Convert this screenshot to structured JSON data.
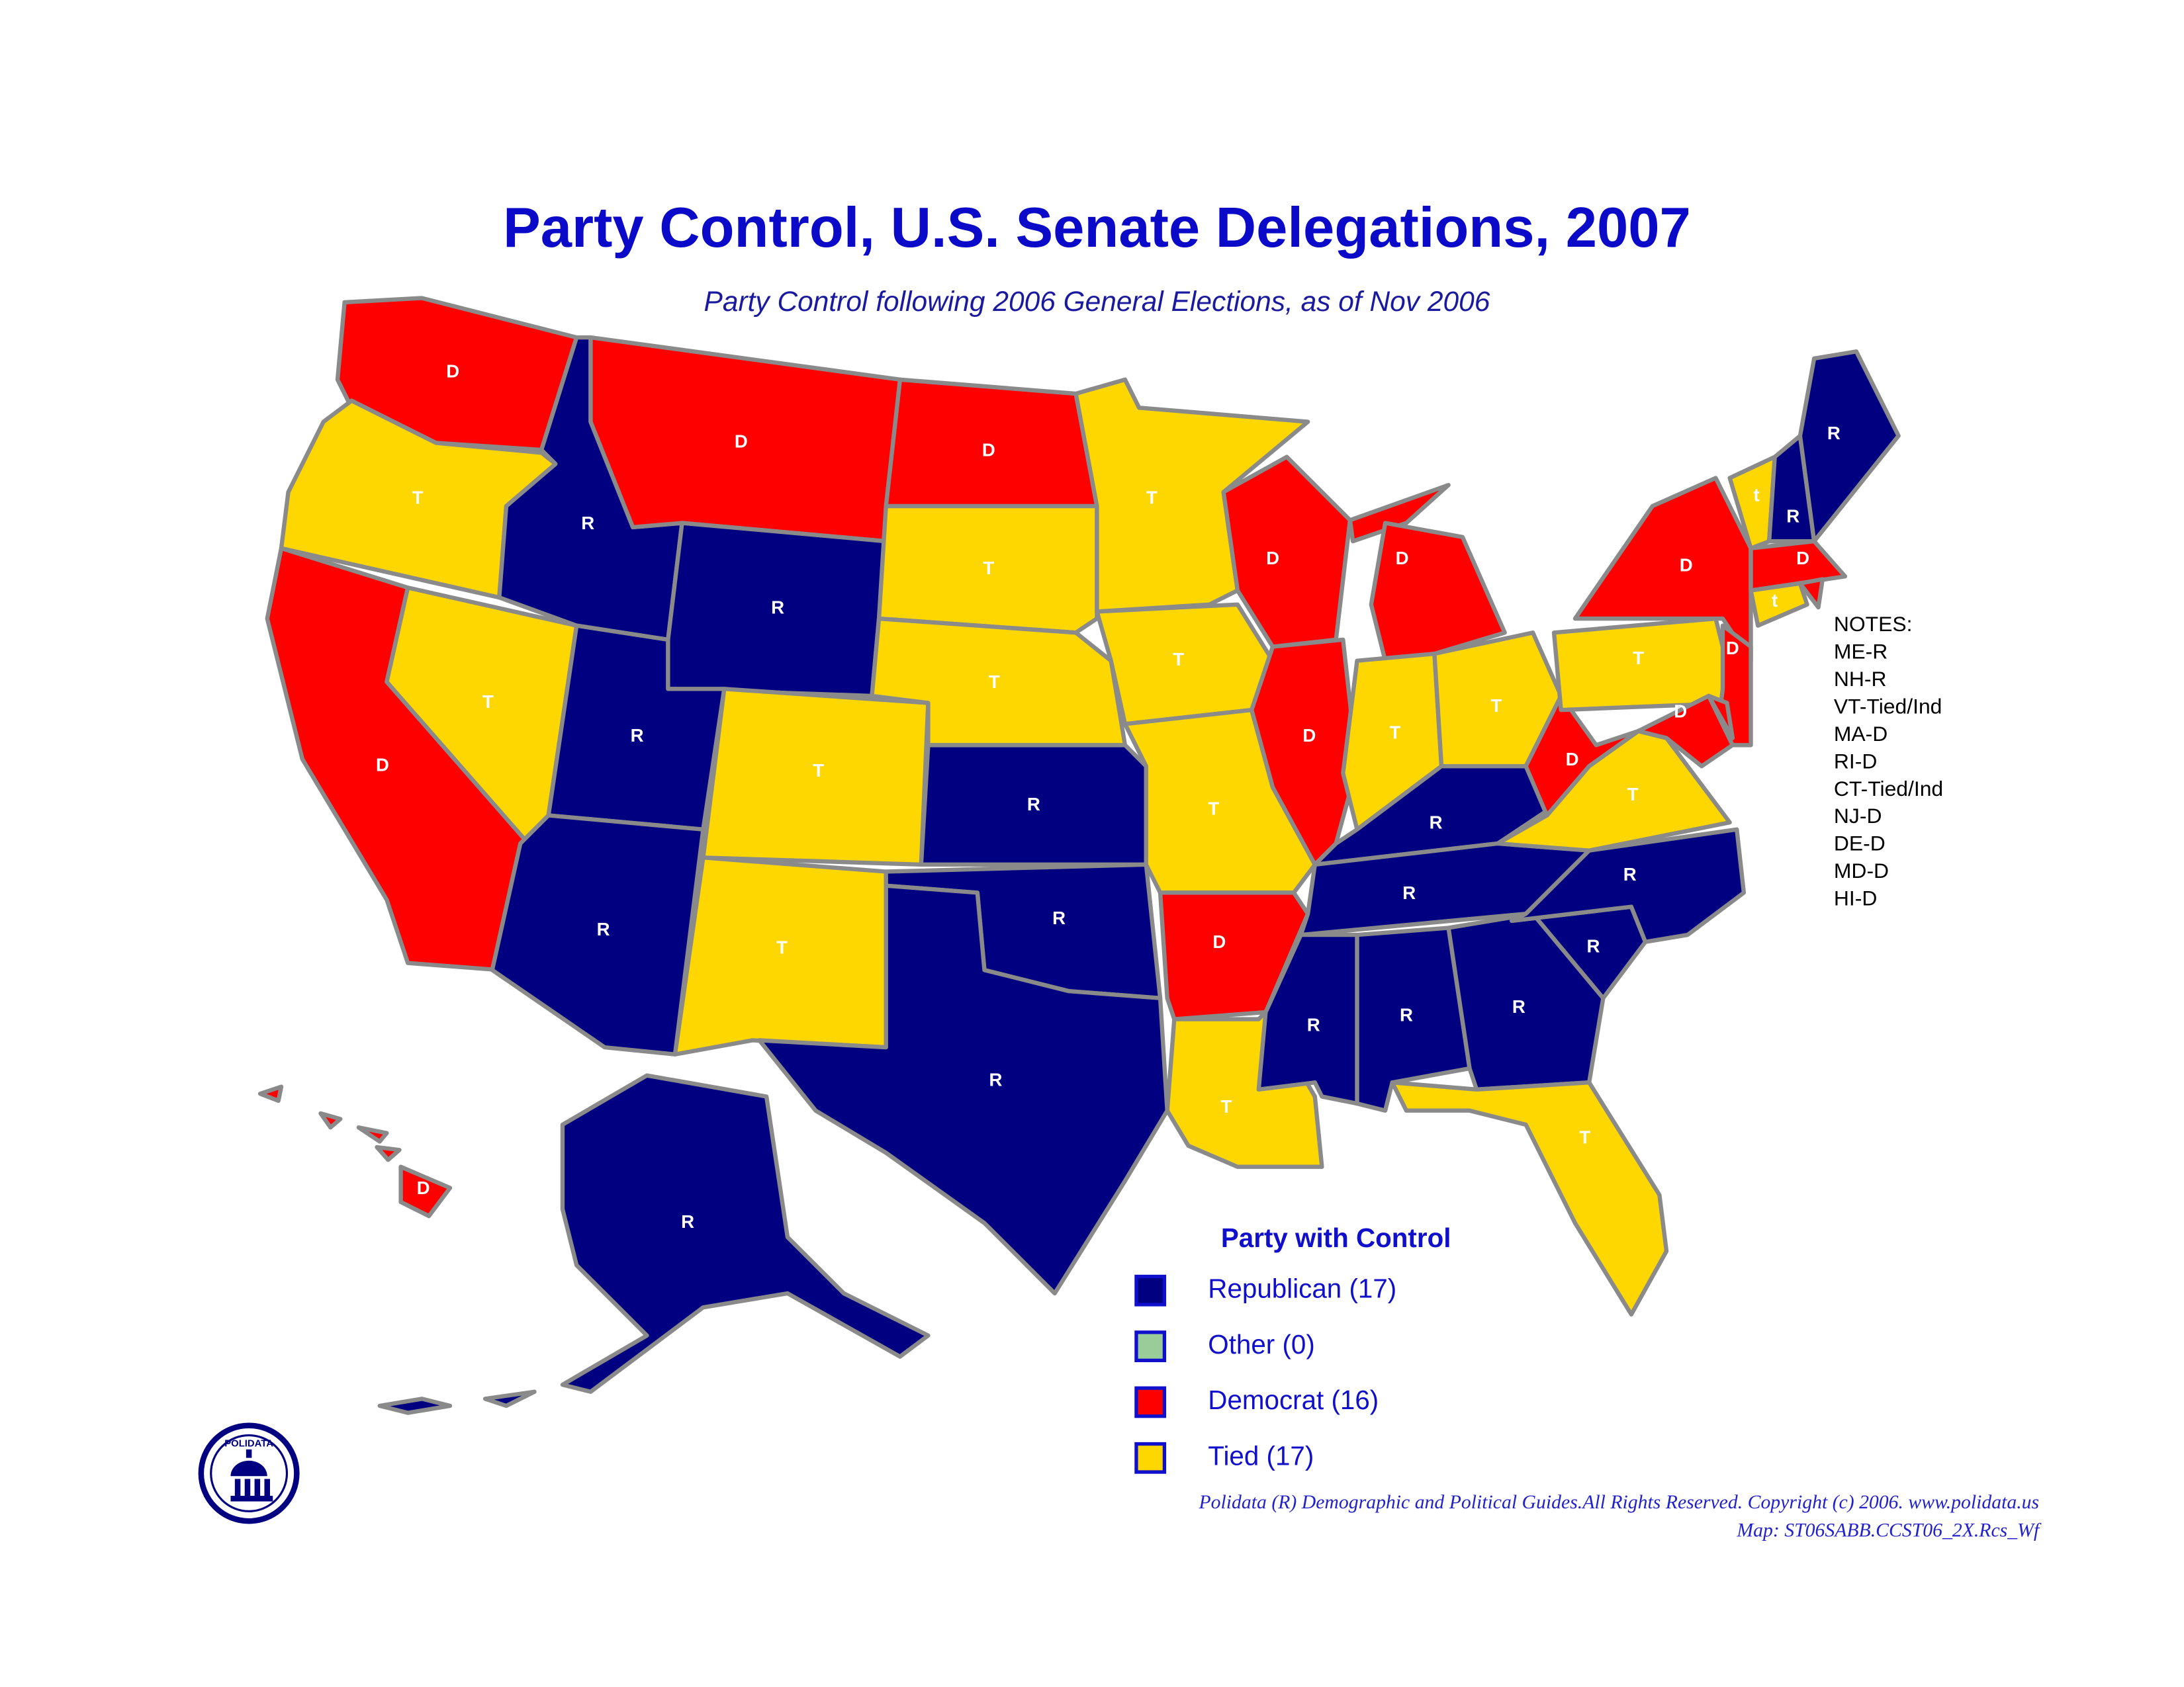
{
  "title": "Party Control, U.S. Senate Delegations, 2007",
  "subtitle": "Party Control following 2006 General Elections, as of Nov 2006",
  "states": [
    {
      "label": "D",
      "color": "#ff0000"
    },
    {
      "label": "T",
      "color": "#ffd700"
    },
    {
      "label": "D",
      "color": "#ff0000"
    },
    {
      "label": "T",
      "color": "#ffd700"
    },
    {
      "label": "R",
      "color": "#000080"
    },
    {
      "label": "D",
      "color": "#ff0000"
    },
    {
      "label": "R",
      "color": "#000080"
    },
    {
      "label": "R",
      "color": "#000080"
    },
    {
      "label": "R",
      "color": "#000080"
    },
    {
      "label": "T",
      "color": "#ffd700"
    },
    {
      "label": "T",
      "color": "#ffd700"
    },
    {
      "label": "D",
      "color": "#ff0000"
    },
    {
      "label": "T",
      "color": "#ffd700"
    },
    {
      "label": "T",
      "color": "#ffd700"
    },
    {
      "label": "R",
      "color": "#000080"
    },
    {
      "label": "R",
      "color": "#000080"
    },
    {
      "label": "R",
      "color": "#000080"
    },
    {
      "label": "T",
      "color": "#ffd700"
    },
    {
      "label": "T",
      "color": "#ffd700"
    },
    {
      "label": "T",
      "color": "#ffd700"
    },
    {
      "label": "D",
      "color": "#ff0000"
    },
    {
      "label": "T",
      "color": "#ffd700"
    },
    {
      "label": "D",
      "color": "#ff0000"
    },
    {
      "label": "D",
      "color": "#ff0000"
    },
    {
      "label": "D",
      "color": "#ff0000"
    },
    {
      "label": "T",
      "color": "#ffd700"
    },
    {
      "label": "T",
      "color": "#ffd700"
    },
    {
      "label": "R",
      "color": "#000080"
    },
    {
      "label": "R",
      "color": "#000080"
    },
    {
      "label": "R",
      "color": "#000080"
    },
    {
      "label": "R",
      "color": "#000080"
    },
    {
      "label": "R",
      "color": "#000080"
    },
    {
      "label": "T",
      "color": "#ffd700"
    },
    {
      "label": "R",
      "color": "#000080"
    },
    {
      "label": "R",
      "color": "#000080"
    },
    {
      "label": "T",
      "color": "#ffd700"
    },
    {
      "label": "D",
      "color": "#ff0000"
    },
    {
      "label": "T",
      "color": "#ffd700"
    },
    {
      "label": "D",
      "color": "#ff0000"
    },
    {
      "label": "t",
      "color": "#ffd700"
    },
    {
      "label": "R",
      "color": "#000080"
    },
    {
      "label": "R",
      "color": "#000080"
    },
    {
      "label": "D",
      "color": "#ff0000"
    },
    {
      "label": null,
      "color": "#ff0000"
    },
    {
      "label": "t",
      "color": "#ffd700"
    },
    {
      "label": "D",
      "color": "#ff0000"
    },
    {
      "label": null,
      "color": "#ff0000"
    },
    {
      "label": "D",
      "color": "#ff0000"
    },
    {
      "label": "R",
      "color": "#000080"
    },
    {
      "label": "D",
      "color": "#ff0000"
    }
  ],
  "notes": [
    "NOTES:",
    "ME-R",
    "NH-R",
    "VT-Tied/Ind",
    "MA-D",
    "RI-D",
    "CT-Tied/Ind",
    "NJ-D",
    "DE-D",
    "MD-D",
    "HI-D"
  ],
  "legend": {
    "title": "Party with Control",
    "items": [
      {
        "label": "Republican (17)",
        "color": "#000080"
      },
      {
        "label": "Other (0)",
        "color": "#99cc99"
      },
      {
        "label": "Democrat (16)",
        "color": "#ff0000"
      },
      {
        "label": "Tied (17)",
        "color": "#ffd700"
      }
    ]
  },
  "footer": [
    "Polidata (R) Demographic and Political Guides.All Rights Reserved. Copyright (c) 2006.  www.polidata.us",
    "Map: ST06SABB.CCST06_2X.Rcs_Wf"
  ],
  "logo": "POLIDATA"
}
